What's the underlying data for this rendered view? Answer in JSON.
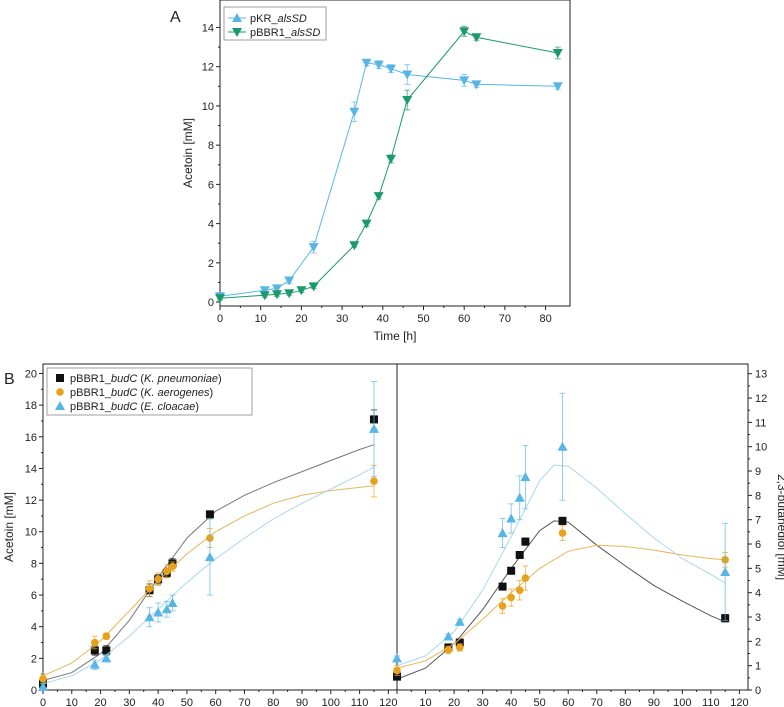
{
  "chart_data": [
    {
      "id": "A",
      "panel_label": "A",
      "type": "line",
      "xlabel": "Time [h]",
      "ylabel": "Acetoin [mM]",
      "xlim": [
        0,
        86
      ],
      "ylim": [
        -0.2,
        15.4
      ],
      "xticks": [
        0,
        10,
        20,
        30,
        40,
        50,
        60,
        70,
        80
      ],
      "yticks": [
        0,
        2,
        4,
        6,
        8,
        10,
        12,
        14
      ],
      "legend_position": "top-left",
      "series": [
        {
          "name_prefix": "pKR_",
          "name_italic": "alsSD",
          "color": "#58b6e6",
          "marker": "triangle-down",
          "legend_marker": "triangle-up",
          "x": [
            0,
            11,
            14,
            17,
            23,
            33,
            36,
            39,
            42,
            46,
            60,
            63,
            83
          ],
          "y": [
            0.3,
            0.6,
            0.7,
            1.1,
            2.8,
            9.7,
            12.2,
            12.1,
            11.9,
            11.6,
            11.3,
            11.1,
            11.0
          ],
          "err": [
            0.1,
            0.15,
            0.1,
            0.15,
            0.3,
            0.5,
            0.15,
            0.2,
            0.2,
            0.5,
            0.3,
            0.15,
            0.15
          ]
        },
        {
          "name_prefix": "pBBR1_",
          "name_italic": "alsSD",
          "color": "#1a9a6c",
          "marker": "triangle-down",
          "legend_marker": "triangle-down",
          "x": [
            0,
            11,
            14,
            17,
            20,
            23,
            33,
            36,
            39,
            42,
            46,
            60,
            63,
            83
          ],
          "y": [
            0.2,
            0.35,
            0.4,
            0.45,
            0.6,
            0.8,
            2.9,
            4.0,
            5.4,
            7.3,
            10.3,
            13.8,
            13.5,
            12.7
          ],
          "err": [
            0.1,
            0.1,
            0.1,
            0.1,
            0.1,
            0.1,
            0.1,
            0.15,
            0.15,
            0.2,
            0.5,
            0.25,
            0.15,
            0.3
          ]
        }
      ]
    },
    {
      "id": "B1",
      "panel_label": "B",
      "type": "scatter",
      "xlabel": "Time [h]",
      "ylabel": "Acetoin [mM]",
      "xlim": [
        0,
        123
      ],
      "ylim": [
        0,
        20.6
      ],
      "xticks": [
        0,
        10,
        20,
        30,
        40,
        50,
        60,
        70,
        80,
        90,
        100,
        110,
        120
      ],
      "yticks": [
        0,
        2,
        4,
        6,
        8,
        10,
        12,
        14,
        16,
        18,
        20
      ],
      "legend_position": "top-left",
      "series": [
        {
          "name_prefix": "pBBR1_",
          "name_italic": "budC",
          "name_suffix_open": " (",
          "name_species": "K. pneumoniae",
          "name_suffix_close": ")",
          "color": "#111111",
          "fit_color": "#777777",
          "marker": "square",
          "x": [
            0,
            18,
            22,
            37,
            40,
            43,
            45,
            58,
            115
          ],
          "y": [
            0.4,
            2.5,
            2.5,
            6.3,
            7.0,
            7.4,
            8.0,
            11.1,
            17.1
          ],
          "err": [
            0.2,
            0.3,
            0.3,
            0.4,
            0.3,
            0.3,
            0.3,
            0.2,
            0.6
          ],
          "fit_x": [
            0,
            10,
            20,
            30,
            40,
            50,
            60,
            70,
            80,
            90,
            100,
            110,
            115
          ],
          "fit_y": [
            0.6,
            1.1,
            2.3,
            4.4,
            7.1,
            9.6,
            11.3,
            12.3,
            13.1,
            13.8,
            14.5,
            15.2,
            15.5
          ]
        },
        {
          "name_prefix": "pBBR1_",
          "name_italic": "budC",
          "name_suffix_open": " (",
          "name_species": "K. aerogenes",
          "name_suffix_close": ")",
          "color": "#e8a21a",
          "fit_color": "#e8b45a",
          "marker": "circle",
          "x": [
            0,
            18,
            22,
            37,
            40,
            43,
            45,
            58,
            115
          ],
          "y": [
            0.7,
            3.0,
            3.4,
            6.4,
            7.0,
            7.5,
            7.8,
            9.6,
            13.2
          ],
          "err": [
            0.3,
            0.4,
            0.2,
            0.5,
            0.4,
            0.4,
            0.3,
            0.6,
            1.0
          ],
          "fit_x": [
            0,
            10,
            20,
            30,
            40,
            50,
            60,
            70,
            80,
            90,
            100,
            110,
            115
          ],
          "fit_y": [
            0.9,
            1.7,
            3.1,
            5.0,
            6.9,
            8.6,
            10.0,
            11.0,
            11.8,
            12.3,
            12.6,
            12.8,
            12.9
          ]
        },
        {
          "name_prefix": "pBBR1_",
          "name_italic": "budC",
          "name_suffix_open": " (",
          "name_species": "E. cloacae",
          "name_suffix_close": ")",
          "color": "#58b6e6",
          "fit_color": "#a9d8ec",
          "marker": "triangle-up",
          "x": [
            0,
            18,
            22,
            37,
            40,
            43,
            45,
            58,
            115
          ],
          "y": [
            0.2,
            1.6,
            2.0,
            4.6,
            4.9,
            5.1,
            5.5,
            8.4,
            16.5
          ],
          "err": [
            0.2,
            0.3,
            0.2,
            0.6,
            0.6,
            0.5,
            0.5,
            2.4,
            3.0
          ],
          "fit_x": [
            0,
            10,
            20,
            30,
            40,
            50,
            60,
            70,
            80,
            90,
            100,
            110,
            115
          ],
          "fit_y": [
            0.4,
            0.9,
            1.9,
            3.4,
            5.1,
            6.8,
            8.3,
            9.6,
            10.8,
            11.8,
            12.7,
            13.6,
            14.1
          ]
        }
      ]
    },
    {
      "id": "B2",
      "panel_label": "",
      "type": "scatter",
      "xlabel": "Time [h]",
      "ylabel": "2,3-butanediol [mM]",
      "xlim": [
        0,
        123
      ],
      "ylim": [
        0,
        13.4
      ],
      "xticks": [
        0,
        10,
        20,
        30,
        40,
        50,
        60,
        70,
        80,
        90,
        100,
        110,
        120
      ],
      "yticks": [
        0,
        1,
        2,
        3,
        4,
        5,
        6,
        7,
        8,
        9,
        10,
        11,
        12,
        13
      ],
      "series": [
        {
          "color": "#111111",
          "fit_color": "#555555",
          "marker": "square",
          "x": [
            0,
            18,
            22,
            37,
            40,
            43,
            45,
            58,
            115
          ],
          "y": [
            0.55,
            1.75,
            1.95,
            4.25,
            4.9,
            5.55,
            6.1,
            6.95,
            2.95
          ],
          "err": [
            0.1,
            0.1,
            0.1,
            0.1,
            0.1,
            0.1,
            0.15,
            0.15,
            0.15
          ],
          "fit_x": [
            0,
            10,
            20,
            30,
            40,
            50,
            55,
            60,
            70,
            80,
            90,
            100,
            110,
            115
          ],
          "fit_y": [
            0.45,
            0.9,
            1.9,
            3.3,
            5.0,
            6.55,
            6.95,
            6.9,
            5.95,
            5.1,
            4.3,
            3.65,
            3.05,
            2.8
          ]
        },
        {
          "color": "#e8a21a",
          "fit_color": "#e8b45a",
          "marker": "circle",
          "x": [
            0,
            18,
            22,
            37,
            40,
            43,
            45,
            58,
            115
          ],
          "y": [
            0.8,
            1.65,
            1.75,
            3.45,
            3.8,
            4.1,
            4.6,
            6.45,
            5.35
          ],
          "err": [
            0.2,
            0.15,
            0.15,
            0.3,
            0.35,
            0.4,
            0.5,
            0.3,
            0.3
          ],
          "fit_x": [
            0,
            10,
            20,
            30,
            40,
            50,
            60,
            70,
            80,
            90,
            100,
            110,
            115
          ],
          "fit_y": [
            0.9,
            1.2,
            1.9,
            2.9,
            4.0,
            5.0,
            5.7,
            5.95,
            5.9,
            5.75,
            5.55,
            5.4,
            5.35
          ]
        },
        {
          "color": "#58b6e6",
          "fit_color": "#a9d8ec",
          "marker": "triangle-up",
          "x": [
            0,
            18,
            22,
            37,
            40,
            43,
            45,
            58,
            115
          ],
          "y": [
            1.3,
            2.2,
            2.8,
            6.45,
            7.05,
            7.9,
            8.75,
            10.0,
            4.85
          ],
          "err": [
            0.1,
            0.1,
            0.1,
            0.6,
            0.6,
            0.9,
            1.3,
            2.2,
            2.0
          ],
          "fit_x": [
            0,
            10,
            20,
            30,
            40,
            50,
            55,
            60,
            70,
            80,
            90,
            100,
            110,
            115
          ],
          "fit_y": [
            1.0,
            1.4,
            2.4,
            4.1,
            6.3,
            8.6,
            9.25,
            9.2,
            8.3,
            7.25,
            6.25,
            5.4,
            4.75,
            4.4
          ]
        }
      ]
    }
  ]
}
